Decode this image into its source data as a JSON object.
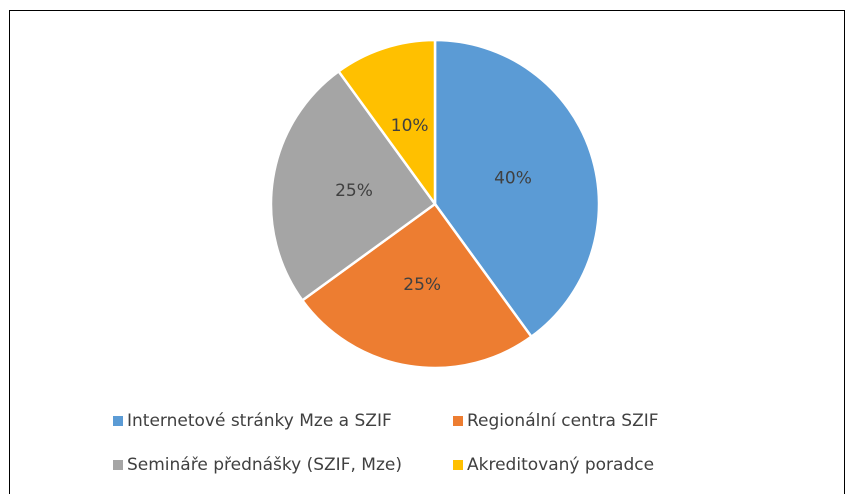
{
  "chart_data": {
    "type": "pie",
    "categories": [
      "Internetové stránky Mze a SZIF",
      "Regionální centra SZIF",
      "Semináře přednášky (SZIF, Mze)",
      "Akreditovaný poradce"
    ],
    "values": [
      40,
      25,
      25,
      10
    ],
    "value_labels": [
      "40%",
      "25%",
      "25%",
      "10%"
    ],
    "colors": [
      "#5b9bd5",
      "#ed7d31",
      "#a5a5a5",
      "#ffc000"
    ],
    "legend": "bottom"
  }
}
